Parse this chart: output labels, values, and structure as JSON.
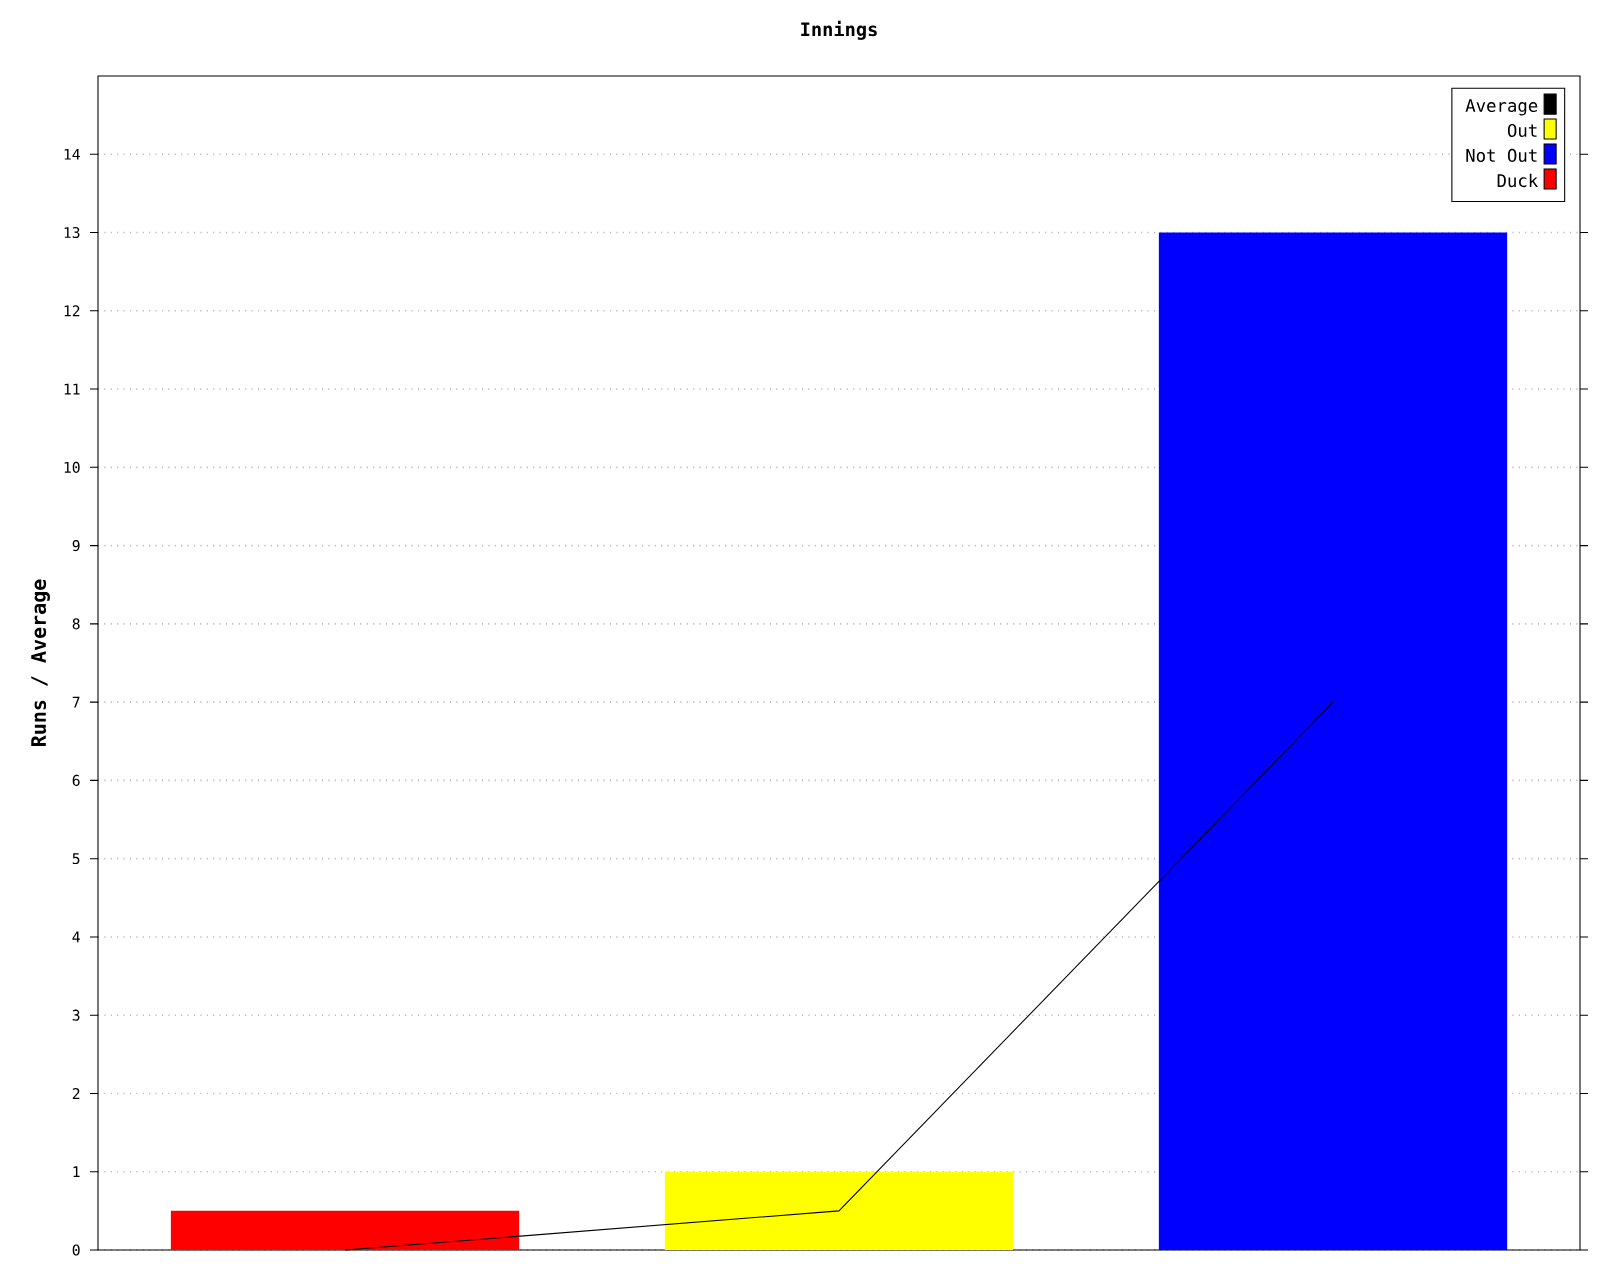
{
  "chart_data": {
    "type": "bar",
    "title": "Innings",
    "ylabel": "Runs / Average",
    "categories": [
      null,
      null,
      null
    ],
    "series": [
      {
        "name": "Average",
        "type": "line",
        "color": "#000000",
        "values": [
          0,
          0.5,
          7
        ]
      },
      {
        "name": "Out",
        "color": "#ffff00",
        "values": [
          null,
          1,
          null
        ]
      },
      {
        "name": "Not Out",
        "color": "#0000ff",
        "values": [
          null,
          null,
          13
        ]
      },
      {
        "name": "Duck",
        "color": "#ff0000",
        "values": [
          0.5,
          null,
          null
        ]
      }
    ],
    "ylim": [
      0,
      15
    ],
    "yticks": [
      0,
      1,
      2,
      3,
      4,
      5,
      6,
      7,
      8,
      9,
      10,
      11,
      12,
      13,
      14
    ],
    "grid": "y",
    "legend": "top right",
    "marker": "none"
  }
}
